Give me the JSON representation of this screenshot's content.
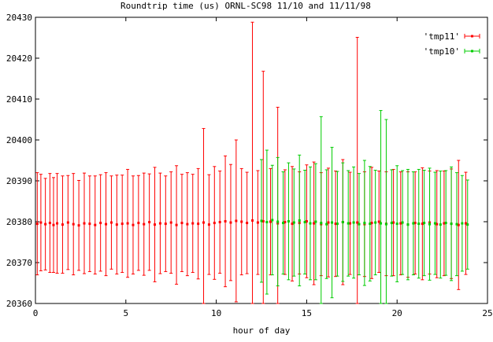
{
  "chart_data": {
    "type": "errorbar",
    "title": "Roundtrip time (us) ORNL-SC98 11/10 and 11/11/98",
    "xlabel": "hour of day",
    "ylabel": "",
    "xlim": [
      0,
      25
    ],
    "ylim": [
      20360,
      20430
    ],
    "xticks": [
      0,
      5,
      10,
      15,
      20,
      25
    ],
    "yticks": [
      20360,
      20370,
      20380,
      20390,
      20400,
      20410,
      20420,
      20430
    ],
    "grid": false,
    "legend_position": "top-right",
    "series": [
      {
        "name": "'tmp11'",
        "color": "#ff0000",
        "x": [
          0.1,
          0.3,
          0.55,
          0.8,
          1.0,
          1.2,
          1.5,
          1.8,
          2.1,
          2.4,
          2.7,
          3.0,
          3.3,
          3.6,
          3.9,
          4.2,
          4.5,
          4.8,
          5.1,
          5.4,
          5.7,
          6.0,
          6.3,
          6.6,
          6.9,
          7.2,
          7.5,
          7.8,
          8.1,
          8.4,
          8.7,
          9.0,
          9.3,
          9.6,
          9.9,
          10.2,
          10.5,
          10.8,
          11.1,
          11.4,
          11.7,
          12.0,
          12.3,
          12.6,
          13.0,
          13.4,
          13.8,
          14.2,
          14.6,
          15.0,
          15.4,
          15.8,
          16.2,
          16.6,
          17.0,
          17.4,
          17.8,
          18.2,
          18.6,
          19.0,
          19.4,
          19.8,
          20.2,
          20.6,
          21.0,
          21.4,
          21.8,
          22.2,
          22.6,
          23.0,
          23.4,
          23.8
        ],
        "y": [
          20379.5,
          20379.8,
          20379.4,
          20379.7,
          20379.2,
          20379.6,
          20379.3,
          20379.8,
          20379.4,
          20379.1,
          20379.6,
          20379.5,
          20379.2,
          20379.7,
          20379.4,
          20379.8,
          20379.3,
          20379.5,
          20379.6,
          20379.2,
          20379.7,
          20379.4,
          20379.9,
          20379.3,
          20379.6,
          20379.5,
          20379.8,
          20379.2,
          20379.7,
          20379.4,
          20379.6,
          20379.5,
          20379.8,
          20379.3,
          20379.7,
          20379.9,
          20380.1,
          20379.8,
          20380.2,
          20380.0,
          20379.7,
          20380.3,
          20379.8,
          20380.1,
          20380.0,
          20379.6,
          20379.9,
          20379.5,
          20379.7,
          20380.1,
          20379.6,
          20379.4,
          20379.8,
          20379.5,
          20379.9,
          20379.6,
          20379.8,
          20379.4,
          20379.7,
          20380.0,
          20379.5,
          20379.8,
          20379.6,
          20379.3,
          20379.7,
          20379.5,
          20379.8,
          20379.4,
          20379.6,
          20379.5,
          20379.2,
          20379.6
        ],
        "yerr": [
          12.5,
          11.8,
          11.2,
          12.1,
          11.6,
          12.2,
          11.9,
          11.5,
          12.4,
          11.0,
          12.3,
          11.7,
          12.0,
          11.8,
          12.6,
          11.4,
          12.1,
          11.9,
          13.2,
          12.0,
          11.6,
          12.5,
          11.8,
          14.0,
          12.3,
          11.7,
          12.4,
          14.5,
          11.9,
          12.6,
          12.0,
          13.5,
          23.0,
          12.2,
          13.8,
          12.5,
          16.0,
          14.2,
          19.8,
          13.0,
          12.4,
          48.5,
          12.7,
          36.7,
          13.0,
          28.4,
          12.8,
          14.0,
          12.5,
          13.8,
          15.0,
          12.6,
          13.3,
          12.9,
          15.3,
          12.5,
          45.3,
          12.8,
          13.6,
          12.4,
          12.7,
          13.0,
          12.6,
          12.9,
          12.5,
          13.7,
          12.6,
          13.1,
          12.8,
          13.4,
          15.8,
          12.5
        ]
      },
      {
        "name": "'tmp10'",
        "color": "#00cc00",
        "x": [
          12.5,
          12.8,
          13.1,
          13.4,
          13.7,
          14.0,
          14.3,
          14.6,
          14.9,
          15.2,
          15.5,
          15.8,
          16.1,
          16.4,
          16.7,
          17.0,
          17.3,
          17.6,
          17.9,
          18.2,
          18.5,
          18.8,
          19.1,
          19.4,
          19.7,
          20.0,
          20.3,
          20.6,
          20.9,
          21.2,
          21.5,
          21.8,
          22.1,
          22.4,
          22.7,
          23.0,
          23.3,
          23.6,
          23.9
        ],
        "y": [
          20380.2,
          20379.9,
          20380.4,
          20380.0,
          20379.7,
          20380.1,
          20379.8,
          20380.3,
          20379.9,
          20379.6,
          20380.0,
          20379.7,
          20379.4,
          20379.8,
          20379.5,
          20379.9,
          20379.6,
          20379.8,
          20379.4,
          20379.7,
          20379.5,
          20379.8,
          20379.6,
          20379.4,
          20379.7,
          20379.5,
          20379.8,
          20379.3,
          20379.6,
          20379.5,
          20379.7,
          20379.4,
          20379.6,
          20379.3,
          20379.7,
          20379.5,
          20379.4,
          20379.6,
          20379.3
        ],
        "yerr": [
          15.0,
          17.6,
          13.4,
          15.7,
          12.5,
          14.3,
          13.1,
          16.0,
          12.7,
          13.8,
          14.2,
          26.0,
          13.3,
          18.4,
          12.8,
          14.5,
          12.9,
          13.6,
          12.4,
          15.3,
          14.0,
          12.8,
          27.6,
          25.6,
          13.0,
          14.2,
          12.7,
          13.5,
          12.6,
          13.3,
          12.9,
          13.7,
          12.5,
          13.1,
          12.8,
          13.9,
          12.6,
          11.7,
          10.9
        ]
      }
    ]
  }
}
